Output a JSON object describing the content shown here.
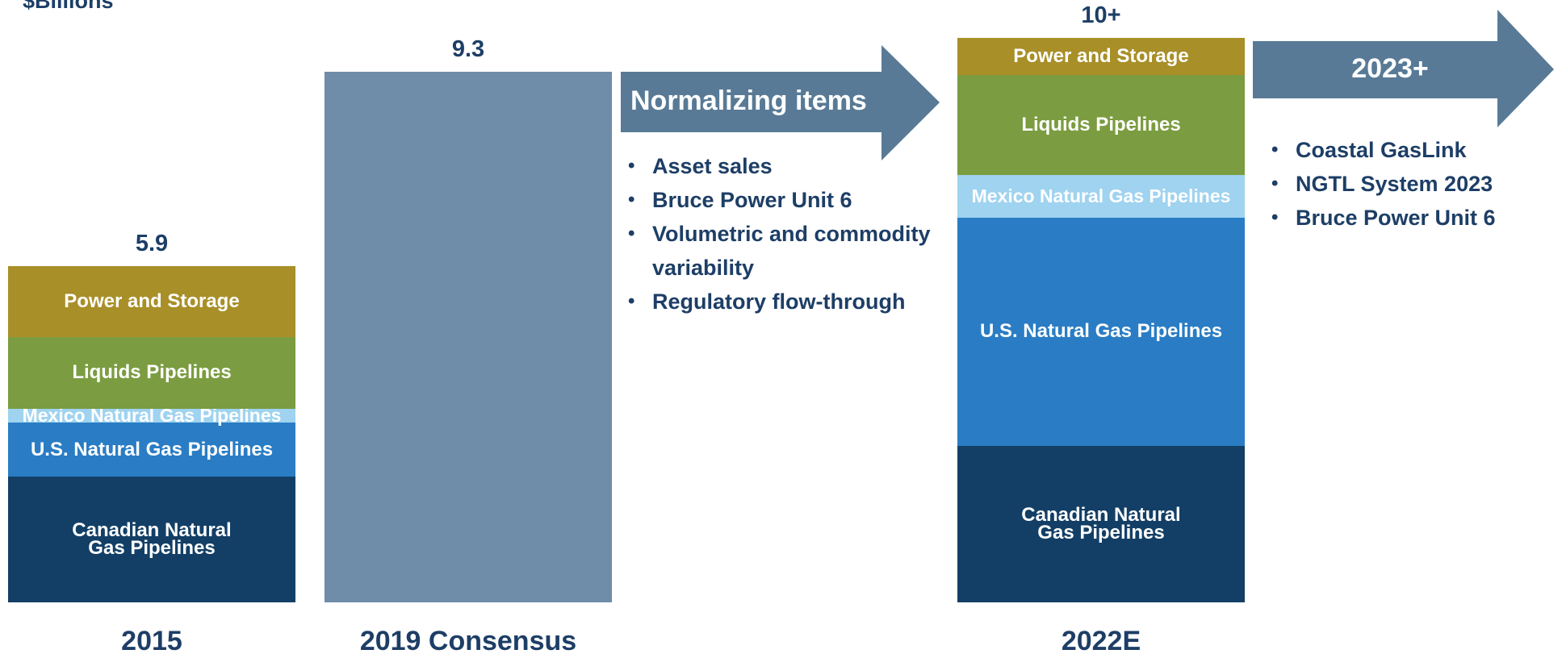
{
  "chart_data": {
    "type": "stacked_bar",
    "unit_label": "$Billions",
    "categories": [
      "2015",
      "2019 Consensus",
      "2022E"
    ],
    "series": [
      {
        "name": "Canadian Natural Gas Pipelines",
        "color": "#133f66",
        "values": [
          2.2,
          null,
          2.75
        ]
      },
      {
        "name": "U.S. Natural Gas Pipelines",
        "color": "#2a7dc4",
        "values": [
          0.95,
          null,
          4.0
        ]
      },
      {
        "name": "Mexico Natural Gas Pipelines",
        "color": "#9fd3f0",
        "values": [
          0.25,
          null,
          0.75
        ]
      },
      {
        "name": "Liquids Pipelines",
        "color": "#7b9c40",
        "values": [
          1.25,
          null,
          1.75
        ]
      },
      {
        "name": "Power and Storage",
        "color": "#a88f28",
        "values": [
          1.25,
          null,
          0.65
        ]
      },
      {
        "color": "#6f8ca8",
        "values": [
          null,
          9.3,
          null
        ]
      }
    ],
    "totals": {
      "values": [
        5.9,
        9.3,
        10
      ],
      "value_labels": [
        "5.9",
        "9.3",
        "10+"
      ]
    },
    "annotations": [
      {
        "title": "Normalizing items",
        "items": [
          "Asset sales",
          "Bruce Power Unit 6",
          "Volumetric and commodity variability",
          "Regulatory flow-through"
        ]
      },
      {
        "title": "2023+",
        "items": [
          "Coastal GasLink",
          "NGTL System 2023",
          "Bruce Power Unit 6"
        ]
      }
    ]
  }
}
